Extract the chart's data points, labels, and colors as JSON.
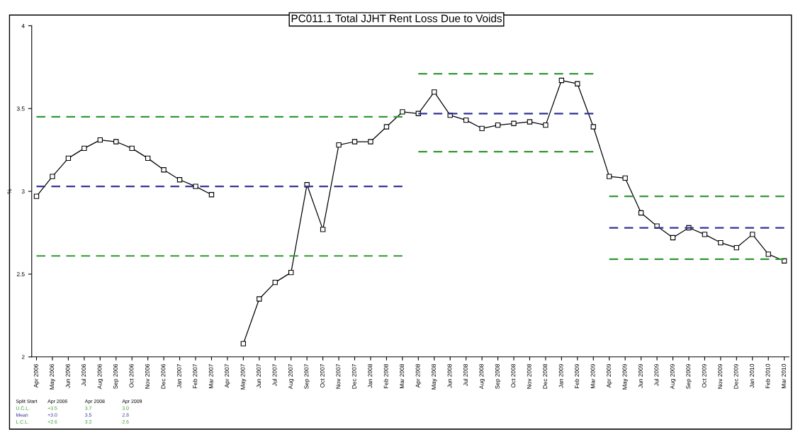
{
  "chart_data": {
    "type": "line",
    "title": "PC011.1 Total JJHT Rent Loss Due to Voids",
    "ylabel": "%",
    "categories": [
      "Apr 2006",
      "May 2006",
      "Jun 2006",
      "Jul 2006",
      "Aug 2006",
      "Sep 2006",
      "Oct 2006",
      "Nov 2006",
      "Dec 2006",
      "Jan 2007",
      "Feb 2007",
      "Mar 2007",
      "Apr 2007",
      "May 2007",
      "Jun 2007",
      "Jul 2007",
      "Aug 2007",
      "Sep 2007",
      "Oct 2007",
      "Nov 2007",
      "Dec 2007",
      "Jan 2008",
      "Feb 2008",
      "Mar 2008",
      "Apr 2008",
      "May 2008",
      "Jun 2008",
      "Jul 2008",
      "Aug 2008",
      "Sep 2008",
      "Oct 2008",
      "Nov 2008",
      "Dec 2008",
      "Jan 2009",
      "Feb 2009",
      "Mar 2009",
      "Apr 2009",
      "May 2009",
      "Jun 2009",
      "Jul 2009",
      "Aug 2009",
      "Sep 2009",
      "Oct 2009",
      "Nov 2009",
      "Dec 2009",
      "Jan 2010",
      "Feb 2010",
      "Mar 2010"
    ],
    "series": [
      {
        "color": "#000000",
        "marker": "square",
        "line_style": "solid",
        "values": [
          2.97,
          3.09,
          3.2,
          3.26,
          3.31,
          3.3,
          3.26,
          3.2,
          3.13,
          3.07,
          3.03,
          2.98,
          null,
          2.08,
          2.35,
          2.45,
          2.51,
          3.04,
          2.77,
          3.28,
          3.3,
          3.3,
          3.39,
          3.48,
          3.47,
          3.6,
          3.46,
          3.43,
          3.38,
          3.4,
          3.41,
          3.42,
          3.4,
          3.67,
          3.65,
          3.39,
          3.09,
          3.08,
          2.87,
          2.79,
          2.72,
          2.78,
          2.74,
          2.69,
          2.66,
          2.74,
          2.62,
          2.58
        ]
      },
      {
        "color": "#339933",
        "marker": "none",
        "line_style": "dashed",
        "values": [
          3.45,
          3.45,
          3.45,
          3.45,
          3.45,
          3.45,
          3.45,
          3.45,
          3.45,
          3.45,
          3.45,
          3.45,
          3.45,
          3.45,
          3.45,
          3.45,
          3.45,
          3.45,
          3.45,
          3.45,
          3.45,
          3.45,
          3.45,
          3.45,
          null,
          null,
          null,
          null,
          null,
          null,
          null,
          null,
          null,
          null,
          null,
          null,
          null,
          null,
          null,
          null,
          null,
          null,
          null,
          null,
          null,
          null,
          null,
          null
        ]
      },
      {
        "color": "#333399",
        "marker": "none",
        "line_style": "dashed",
        "values": [
          3.03,
          3.03,
          3.03,
          3.03,
          3.03,
          3.03,
          3.03,
          3.03,
          3.03,
          3.03,
          3.03,
          3.03,
          3.03,
          3.03,
          3.03,
          3.03,
          3.03,
          3.03,
          3.03,
          3.03,
          3.03,
          3.03,
          3.03,
          3.03,
          null,
          null,
          null,
          null,
          null,
          null,
          null,
          null,
          null,
          null,
          null,
          null,
          null,
          null,
          null,
          null,
          null,
          null,
          null,
          null,
          null,
          null,
          null,
          null
        ]
      },
      {
        "color": "#339933",
        "marker": "none",
        "line_style": "dashed",
        "values": [
          2.61,
          2.61,
          2.61,
          2.61,
          2.61,
          2.61,
          2.61,
          2.61,
          2.61,
          2.61,
          2.61,
          2.61,
          2.61,
          2.61,
          2.61,
          2.61,
          2.61,
          2.61,
          2.61,
          2.61,
          2.61,
          2.61,
          2.61,
          2.61,
          null,
          null,
          null,
          null,
          null,
          null,
          null,
          null,
          null,
          null,
          null,
          null,
          null,
          null,
          null,
          null,
          null,
          null,
          null,
          null,
          null,
          null,
          null,
          null
        ]
      },
      {
        "color": "#339933",
        "marker": "none",
        "line_style": "dashed",
        "values": [
          null,
          null,
          null,
          null,
          null,
          null,
          null,
          null,
          null,
          null,
          null,
          null,
          null,
          null,
          null,
          null,
          null,
          null,
          null,
          null,
          null,
          null,
          null,
          null,
          3.71,
          3.71,
          3.71,
          3.71,
          3.71,
          3.71,
          3.71,
          3.71,
          3.71,
          3.71,
          3.71,
          3.71,
          null,
          null,
          null,
          null,
          null,
          null,
          null,
          null,
          null,
          null,
          null,
          null
        ]
      },
      {
        "color": "#333399",
        "marker": "none",
        "line_style": "dashed",
        "values": [
          null,
          null,
          null,
          null,
          null,
          null,
          null,
          null,
          null,
          null,
          null,
          null,
          null,
          null,
          null,
          null,
          null,
          null,
          null,
          null,
          null,
          null,
          null,
          null,
          3.47,
          3.47,
          3.47,
          3.47,
          3.47,
          3.47,
          3.47,
          3.47,
          3.47,
          3.47,
          3.47,
          3.47,
          null,
          null,
          null,
          null,
          null,
          null,
          null,
          null,
          null,
          null,
          null,
          null
        ]
      },
      {
        "color": "#339933",
        "marker": "none",
        "line_style": "dashed",
        "values": [
          null,
          null,
          null,
          null,
          null,
          null,
          null,
          null,
          null,
          null,
          null,
          null,
          null,
          null,
          null,
          null,
          null,
          null,
          null,
          null,
          null,
          null,
          null,
          null,
          3.24,
          3.24,
          3.24,
          3.24,
          3.24,
          3.24,
          3.24,
          3.24,
          3.24,
          3.24,
          3.24,
          3.24,
          null,
          null,
          null,
          null,
          null,
          null,
          null,
          null,
          null,
          null,
          null,
          null
        ]
      },
      {
        "color": "#339933",
        "marker": "none",
        "line_style": "dashed",
        "values": [
          null,
          null,
          null,
          null,
          null,
          null,
          null,
          null,
          null,
          null,
          null,
          null,
          null,
          null,
          null,
          null,
          null,
          null,
          null,
          null,
          null,
          null,
          null,
          null,
          null,
          null,
          null,
          null,
          null,
          null,
          null,
          null,
          null,
          null,
          null,
          null,
          2.97,
          2.97,
          2.97,
          2.97,
          2.97,
          2.97,
          2.97,
          2.97,
          2.97,
          2.97,
          2.97,
          2.97
        ]
      },
      {
        "color": "#333399",
        "marker": "none",
        "line_style": "dashed",
        "values": [
          null,
          null,
          null,
          null,
          null,
          null,
          null,
          null,
          null,
          null,
          null,
          null,
          null,
          null,
          null,
          null,
          null,
          null,
          null,
          null,
          null,
          null,
          null,
          null,
          null,
          null,
          null,
          null,
          null,
          null,
          null,
          null,
          null,
          null,
          null,
          null,
          2.78,
          2.78,
          2.78,
          2.78,
          2.78,
          2.78,
          2.78,
          2.78,
          2.78,
          2.78,
          2.78,
          2.78
        ]
      },
      {
        "color": "#339933",
        "marker": "none",
        "line_style": "dashed",
        "values": [
          null,
          null,
          null,
          null,
          null,
          null,
          null,
          null,
          null,
          null,
          null,
          null,
          null,
          null,
          null,
          null,
          null,
          null,
          null,
          null,
          null,
          null,
          null,
          null,
          null,
          null,
          null,
          null,
          null,
          null,
          null,
          null,
          null,
          null,
          null,
          null,
          2.59,
          2.59,
          2.59,
          2.59,
          2.59,
          2.59,
          2.59,
          2.59,
          2.59,
          2.59,
          2.59,
          2.59
        ]
      }
    ],
    "ylim": [
      2,
      4
    ],
    "yticks": [
      2,
      2.5,
      3,
      3.5,
      4
    ],
    "grid": false,
    "legend": false,
    "annotations": [
      "Split Start",
      "Apr 2006",
      "Apr 2008",
      "Apr 2009",
      "U.C.L.",
      "+3.5",
      "3.7",
      "3.0",
      "Mean",
      "+3.0",
      "3.5",
      "2.8",
      "L.C.L.",
      "+2.6",
      "3.2",
      "2.6"
    ]
  }
}
